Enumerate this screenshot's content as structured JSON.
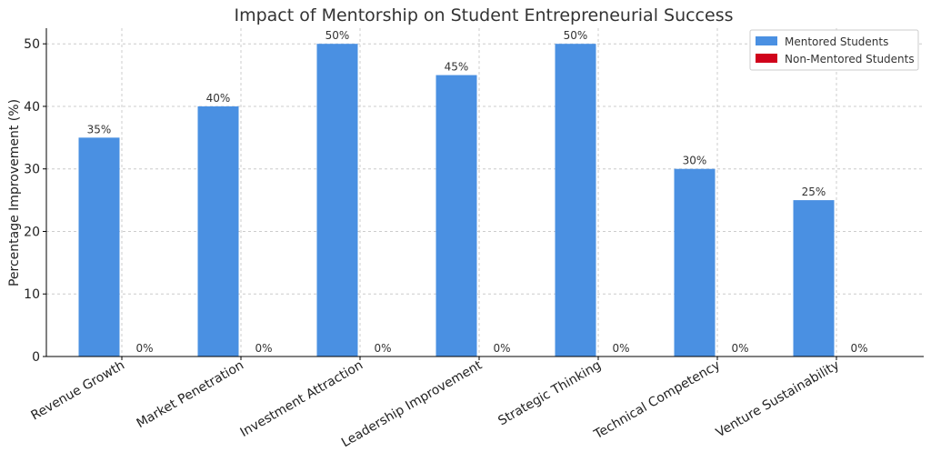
{
  "chart_data": {
    "type": "bar",
    "title": "Impact of Mentorship on Student Entrepreneurial Success",
    "xlabel": "",
    "ylabel": "Percentage Improvement (%)",
    "categories": [
      "Revenue Growth",
      "Market Penetration",
      "Investment Attraction",
      "Leadership Improvement",
      "Strategic Thinking",
      "Technical Competency",
      "Venture Sustainability"
    ],
    "series": [
      {
        "name": "Mentored Students",
        "values": [
          35,
          40,
          50,
          45,
          50,
          30,
          25
        ],
        "labels": [
          "35%",
          "40%",
          "50%",
          "45%",
          "50%",
          "30%",
          "25%"
        ],
        "color": "#4a90e2"
      },
      {
        "name": "Non-Mentored Students",
        "values": [
          0,
          0,
          0,
          0,
          0,
          0,
          0
        ],
        "labels": [
          "0%",
          "0%",
          "0%",
          "0%",
          "0%",
          "0%",
          "0%"
        ],
        "color": "#d0021b"
      }
    ],
    "ylim": [
      0,
      52.5
    ],
    "yticks": [
      0,
      10,
      20,
      30,
      40,
      50
    ],
    "grid": true,
    "legend_position": "top-right"
  }
}
